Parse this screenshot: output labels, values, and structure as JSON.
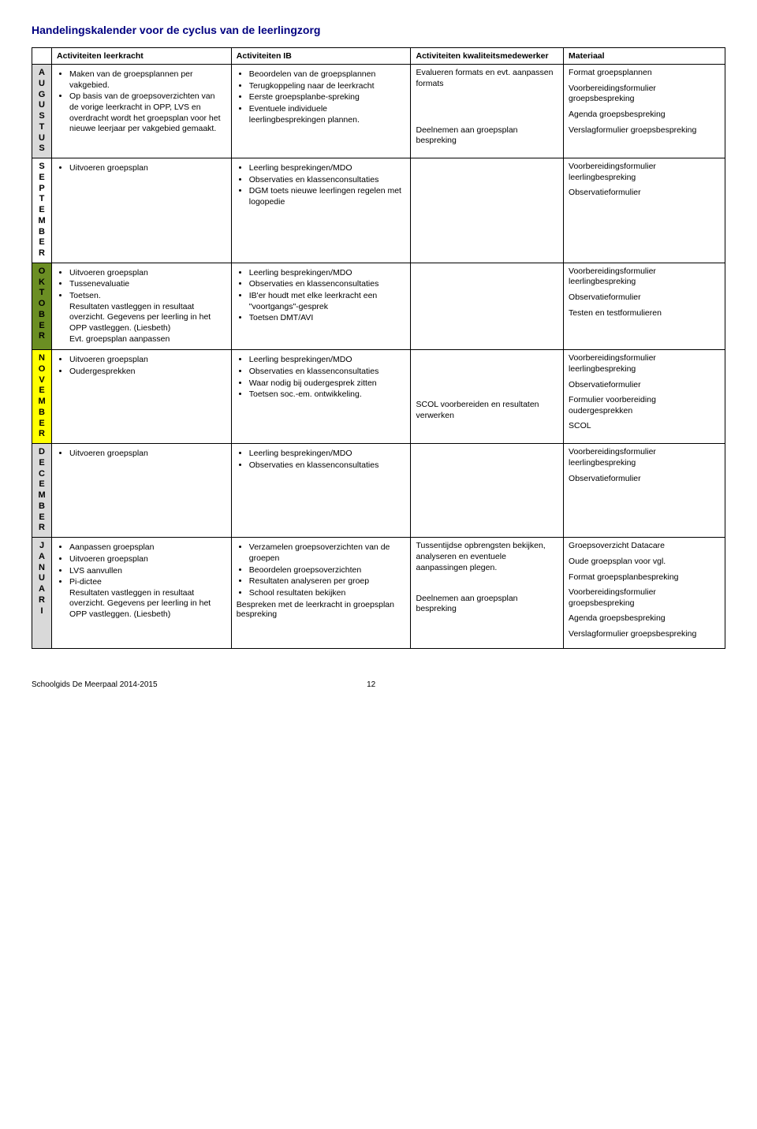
{
  "title": "Handelingskalender voor de cyclus van de leerlingzorg",
  "headers": {
    "blank": "",
    "col1": "Activiteiten leerkracht",
    "col2": "Activiteiten IB",
    "col3": "Activiteiten kwaliteitsmedewerker",
    "col4": "Materiaal"
  },
  "months": {
    "aug": {
      "label": "AUGUSTUS",
      "color": "#d9d9d9",
      "col1_bullets": [
        "Maken van de groepsplannen per vakgebied.",
        "Op basis van de groepsoverzichten van de vorige leerkracht in OPP, LVS en overdracht wordt het groepsplan voor het nieuwe leerjaar per vakgebied gemaakt."
      ],
      "col2_bullets": [
        "Beoordelen van de groepsplannen",
        "Terugkoppeling naar de leerkracht",
        "Eerste groepsplanbe-spreking",
        "Eventuele individuele leerlingbesprekingen plannen."
      ],
      "col3_paras": [
        "Evalueren formats en evt. aanpassen formats",
        "",
        "",
        "Deelnemen aan groepsplan bespreking"
      ],
      "col4_paras": [
        "Format groepsplannen",
        "Voorbereidingsformulier groepsbespreking",
        "Agenda groepsbespreking",
        "Verslagformulier groepsbespreking"
      ]
    },
    "sep": {
      "label": "SEPTEMBER",
      "color": "#ffffff",
      "col1_bullets": [
        "Uitvoeren groepsplan"
      ],
      "col2_bullets": [
        "Leerling besprekingen/MDO",
        "Observaties en klassenconsultaties",
        "DGM toets nieuwe leerlingen regelen met logopedie"
      ],
      "col3_paras": [],
      "col4_paras": [
        "Voorbereidingsformulier leerlingbespreking",
        "Observatieformulier"
      ]
    },
    "okt": {
      "label": "OKTOBER",
      "color": "#6b8e23",
      "col1_bullets": [
        "Uitvoeren groepsplan",
        "Tussenevaluatie",
        "Toetsen.\nResultaten vastleggen in resultaat overzicht. Gegevens per leerling in het OPP vastleggen. (Liesbeth)\nEvt. groepsplan aanpassen"
      ],
      "col2_bullets": [
        "Leerling besprekingen/MDO",
        "Observaties en klassenconsultaties",
        "IB'er houdt met elke leerkracht een \"voortgangs\"-gesprek",
        "Toetsen DMT/AVI"
      ],
      "col3_paras": [],
      "col4_paras": [
        "Voorbereidingsformulier leerlingbespreking",
        "Observatieformulier",
        "Testen en testformulieren"
      ]
    },
    "nov": {
      "label": "NOVEMBER",
      "color": "#ffff00",
      "col1_bullets": [
        "Uitvoeren groepsplan",
        "Oudergesprekken"
      ],
      "col2_bullets": [
        "Leerling besprekingen/MDO",
        "Observaties en klassenconsultaties",
        "Waar nodig bij oudergesprek zitten",
        "Toetsen soc.-em. ontwikkeling."
      ],
      "col3_paras": [
        "",
        "",
        "",
        "SCOL voorbereiden en resultaten verwerken"
      ],
      "col4_paras": [
        "Voorbereidingsformulier leerlingbespreking",
        "Observatieformulier",
        "Formulier voorbereiding oudergesprekken",
        "SCOL"
      ]
    },
    "dec": {
      "label": "DECEMBER",
      "color": "#d9d9d9",
      "col1_bullets": [
        "Uitvoeren groepsplan"
      ],
      "col2_bullets": [
        "Leerling besprekingen/MDO",
        "Observaties en klassenconsultaties"
      ],
      "col3_paras": [],
      "col4_paras": [
        "Voorbereidingsformulier leerlingbespreking",
        "Observatieformulier"
      ]
    },
    "jan": {
      "label": "JANUARI",
      "color": "#d9d9d9",
      "col1_bullets": [
        "Aanpassen groepsplan",
        "Uitvoeren groepsplan",
        "LVS aanvullen",
        "Pi-dictee\nResultaten vastleggen in resultaat overzicht. Gegevens per leerling in het OPP vastleggen. (Liesbeth)"
      ],
      "col2_bullets": [
        "Verzamelen groepsoverzichten van de groepen",
        "Beoordelen groepsoverzichten",
        "Resultaten analyseren per groep",
        "School resultaten bekijken"
      ],
      "col2_extra": "Bespreken met de leerkracht in groepsplan bespreking",
      "col3_paras": [
        "Tussentijdse opbrengsten bekijken, analyseren en eventuele aanpassingen plegen.",
        "",
        "Deelnemen aan groepsplan bespreking"
      ],
      "col4_paras": [
        "Groepsoverzicht Datacare",
        "Oude groepsplan voor vgl.",
        "Format groepsplanbespreking",
        "Voorbereidingsformulier groepsbespreking",
        "Agenda groepsbespreking",
        "Verslagformulier groepsbespreking"
      ]
    }
  },
  "footer": {
    "left": "Schoolgids De Meerpaal 2014-2015",
    "page": "12"
  }
}
